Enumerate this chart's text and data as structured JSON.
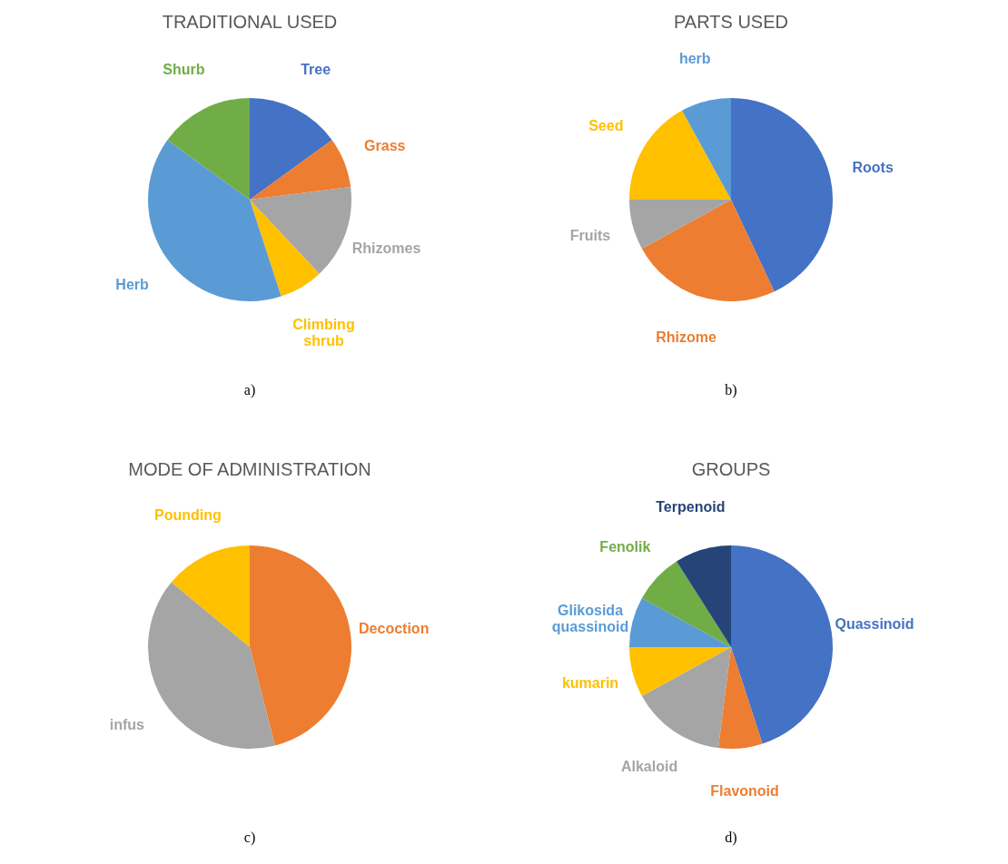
{
  "chart_data": [
    {
      "type": "pie",
      "title": "TRADITIONAL USED",
      "categories": [
        "Tree",
        "Grass",
        "Rhizomes",
        "Climbing shrub",
        "Herb",
        "Shurb"
      ],
      "values": [
        15,
        8,
        15,
        7,
        40,
        15
      ],
      "colors": [
        "#4472c4",
        "#ed7d31",
        "#a5a5a5",
        "#ffc000",
        "#5b9bd5",
        "#70ad47"
      ],
      "annotations": [
        "a)"
      ]
    },
    {
      "type": "pie",
      "title": "PARTS USED",
      "categories": [
        "Roots",
        "Rhizome",
        "Fruits",
        "Seed",
        "herb"
      ],
      "values": [
        43,
        24,
        8,
        17,
        8
      ],
      "colors": [
        "#4472c4",
        "#ed7d31",
        "#a5a5a5",
        "#ffc000",
        "#5b9bd5"
      ],
      "annotations": [
        "b)"
      ]
    },
    {
      "type": "pie",
      "title": "MODE OF ADMINISTRATION",
      "categories": [
        "Decoction",
        "infus",
        "Pounding"
      ],
      "values": [
        46,
        40,
        14
      ],
      "colors": [
        "#ed7d31",
        "#a5a5a5",
        "#ffc000"
      ],
      "annotations": [
        "c)"
      ]
    },
    {
      "type": "pie",
      "title": "GROUPS",
      "categories": [
        "Quassinoid",
        "Flavonoid",
        "Alkaloid",
        "kumarin",
        "Glikosida quassinoid",
        "Fenolik",
        "Terpenoid"
      ],
      "values": [
        45,
        7,
        15,
        8,
        8,
        8,
        9
      ],
      "colors": [
        "#4472c4",
        "#ed7d31",
        "#a5a5a5",
        "#ffc000",
        "#5b9bd5",
        "#70ad47",
        "#264478"
      ],
      "annotations": [
        "d)"
      ]
    }
  ]
}
